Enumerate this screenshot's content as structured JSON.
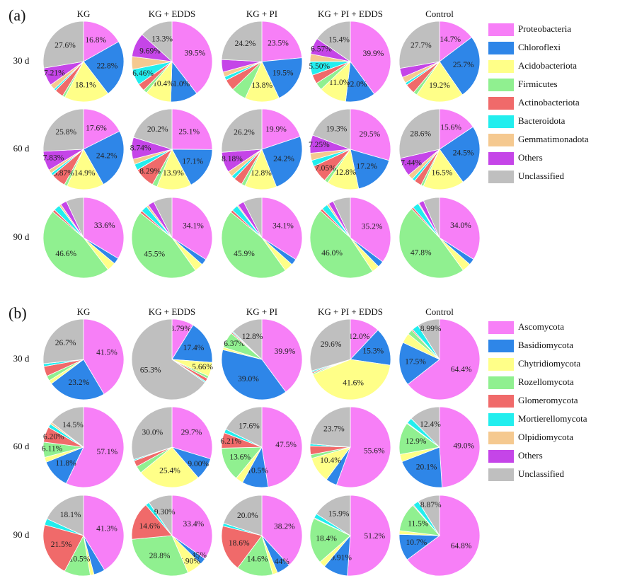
{
  "chart_data": [
    {
      "type": "pie",
      "panel": "(a)",
      "columns": [
        "KG",
        "KG + EDDS",
        "KG + PI",
        "KG + PI + EDDS",
        "Control"
      ],
      "rows": [
        "30 d",
        "60 d",
        "90 d"
      ],
      "categories": [
        "Proteobacteria",
        "Chloroflexi",
        "Acidobacteriota",
        "Firmicutes",
        "Actinobacteriota",
        "Bacteroidota",
        "Gemmatimonadota",
        "Others",
        "Unclassified"
      ],
      "colors": [
        "#f77ff7",
        "#2e86e8",
        "#ffff88",
        "#90f090",
        "#f06a6a",
        "#22eeee",
        "#f5c990",
        "#c545e8",
        "#bfbfbf"
      ],
      "pies": [
        [
          {
            "values": [
              16.8,
              22.8,
              18.1,
              1.0,
              3.5,
              0.8,
              2.19,
              7.21,
              27.6
            ],
            "value_labels": [
              "16.8%",
              "22.8%",
              "18.1%",
              null,
              null,
              null,
              null,
              "7.21%",
              "27.6%"
            ]
          },
          {
            "values": [
              39.5,
              11.0,
              10.4,
              1.5,
              3,
              6.46,
              5.15,
              9.69,
              13.3
            ],
            "value_labels": [
              "39.5%",
              "11.0%",
              "10.4%",
              null,
              null,
              "6.46%",
              null,
              "9.69%",
              "13.3%"
            ]
          },
          {
            "values": [
              23.5,
              19.5,
              13.8,
              6,
              4.5,
              1.5,
              2,
              5,
              24.2
            ],
            "value_labels": [
              "23.5%",
              "19.5%",
              "13.8%",
              null,
              null,
              null,
              null,
              null,
              "24.2%"
            ]
          },
          {
            "values": [
              39.9,
              12.0,
              11.0,
              3,
              3.63,
              5.5,
              3,
              6.57,
              15.4
            ],
            "value_labels": [
              "39.9%",
              "12.0%",
              "11.0%",
              null,
              null,
              "5.50%",
              null,
              "6.57%",
              "15.4%"
            ]
          },
          {
            "values": [
              14.7,
              25.7,
              19.2,
              1.5,
              4,
              1,
              2.5,
              3.7,
              27.7
            ],
            "value_labels": [
              "14.7%",
              "25.7%",
              "19.2%",
              null,
              null,
              null,
              null,
              null,
              "27.7%"
            ]
          }
        ],
        [
          {
            "values": [
              17.6,
              24.2,
              14.9,
              1.2,
              5.87,
              1.1,
              1.5,
              7.83,
              25.8
            ],
            "value_labels": [
              "17.6%",
              "24.2%",
              "14.9%",
              null,
              "5.87%",
              null,
              null,
              "7.83%",
              "25.8%"
            ]
          },
          {
            "values": [
              25.1,
              17.1,
              13.9,
              2,
              8.29,
              2.5,
              2.17,
              8.74,
              20.2
            ],
            "value_labels": [
              "25.1%",
              "17.1%",
              "13.9%",
              null,
              "8.29%",
              null,
              null,
              "8.74%",
              "20.2%"
            ]
          },
          {
            "values": [
              19.9,
              24.2,
              12.8,
              1.5,
              3.5,
              1.5,
              2.22,
              8.18,
              26.2
            ],
            "value_labels": [
              "19.9%",
              "24.2%",
              "12.8%",
              null,
              null,
              null,
              null,
              "8.18%",
              "26.2%"
            ]
          },
          {
            "values": [
              29.5,
              17.2,
              12.8,
              1.5,
              7.05,
              2.5,
              2.9,
              7.25,
              19.3
            ],
            "value_labels": [
              "29.5%",
              "17.2%",
              "12.8%",
              null,
              "7.05%",
              null,
              null,
              "7.25%",
              "19.3%"
            ]
          },
          {
            "values": [
              15.6,
              24.5,
              16.5,
              1,
              3,
              1.2,
              2.16,
              7.44,
              28.6
            ],
            "value_labels": [
              "15.6%",
              "24.5%",
              "16.5%",
              null,
              null,
              null,
              null,
              "7.44%",
              "28.6%"
            ]
          }
        ],
        [
          {
            "values": [
              33.6,
              2.5,
              3.5,
              46.6,
              1,
              2.5,
              0.8,
              2.5,
              7
            ],
            "value_labels": [
              "33.6%",
              null,
              null,
              "46.6%",
              null,
              null,
              null,
              null,
              null
            ]
          },
          {
            "values": [
              34.1,
              2.5,
              3.5,
              45.5,
              1,
              2.5,
              0.9,
              2.5,
              7.5
            ],
            "value_labels": [
              "34.1%",
              null,
              null,
              "45.5%",
              null,
              null,
              null,
              null,
              null
            ]
          },
          {
            "values": [
              34.1,
              2.5,
              3.5,
              45.9,
              1,
              2.5,
              0.5,
              2.5,
              7.5
            ],
            "value_labels": [
              "34.1%",
              null,
              null,
              "45.9%",
              null,
              null,
              null,
              null,
              null
            ]
          },
          {
            "values": [
              35.2,
              2.5,
              3,
              46.0,
              1,
              2.5,
              0.8,
              2,
              7
            ],
            "value_labels": [
              "35.2%",
              null,
              null,
              "46.0%",
              null,
              null,
              null,
              null,
              null
            ]
          },
          {
            "values": [
              34.0,
              2.5,
              3.5,
              47.8,
              0.8,
              2.5,
              0.4,
              2,
              6.5
            ],
            "value_labels": [
              "34.0%",
              null,
              null,
              "47.8%",
              null,
              null,
              null,
              null,
              null
            ]
          }
        ]
      ]
    },
    {
      "type": "pie",
      "panel": "(b)",
      "columns": [
        "KG",
        "KG + EDDS",
        "KG + PI",
        "KG + PI + EDDS",
        "Control"
      ],
      "rows": [
        "30 d",
        "60 d",
        "90 d"
      ],
      "categories": [
        "Ascomycota",
        "Basidiomycota",
        "Chytridiomycota",
        "Rozellomycota",
        "Glomeromycota",
        "Mortierellomycota",
        "Olpidiomycota",
        "Others",
        "Unclassified"
      ],
      "colors": [
        "#f77ff7",
        "#2e86e8",
        "#ffff88",
        "#90f090",
        "#f06a6a",
        "#22eeee",
        "#f5c990",
        "#c545e8",
        "#bfbfbf"
      ],
      "pies": [
        [
          {
            "values": [
              41.5,
              23.2,
              1.5,
              2,
              4,
              1.1,
              0,
              0,
              26.7
            ],
            "value_labels": [
              "41.5%",
              "23.2%",
              null,
              null,
              null,
              null,
              null,
              null,
              "26.7%"
            ]
          },
          {
            "values": [
              8.79,
              17.4,
              5.66,
              1,
              1.35,
              0.5,
              0,
              0,
              65.3
            ],
            "value_labels": [
              "8.79%",
              "17.4%",
              "5.66%",
              null,
              null,
              null,
              null,
              null,
              "65.3%"
            ]
          },
          {
            "values": [
              39.9,
              39.0,
              1,
              6.37,
              0.5,
              0.43,
              0,
              0,
              12.8
            ],
            "value_labels": [
              "39.9%",
              "39.0%",
              null,
              "6.37%",
              null,
              null,
              null,
              null,
              "12.8%"
            ]
          },
          {
            "values": [
              12.0,
              15.3,
              41.6,
              0.5,
              0.5,
              0.5,
              0,
              0,
              29.6
            ],
            "value_labels": [
              "12.0%",
              "15.3%",
              "41.6%",
              null,
              null,
              null,
              null,
              null,
              "29.6%"
            ]
          },
          {
            "values": [
              64.4,
              17.5,
              4,
              2,
              0.5,
              2.61,
              0,
              0,
              8.99
            ],
            "value_labels": [
              "64.4%",
              "17.5%",
              null,
              null,
              null,
              null,
              null,
              null,
              "8.99%"
            ]
          }
        ],
        [
          {
            "values": [
              57.1,
              11.8,
              2,
              6.11,
              6.2,
              1.5,
              0.79,
              0,
              14.5
            ],
            "value_labels": [
              "57.1%",
              "11.8%",
              null,
              "6.11%",
              "6.20%",
              null,
              null,
              null,
              "14.5%"
            ]
          },
          {
            "values": [
              29.7,
              9.0,
              25.4,
              2.9,
              2.5,
              0.5,
              0,
              0,
              30.0
            ],
            "value_labels": [
              "29.7%",
              "9.00%",
              "25.4%",
              null,
              null,
              null,
              null,
              null,
              "30.0%"
            ]
          },
          {
            "values": [
              47.5,
              10.5,
              3,
              13.6,
              6.21,
              1.59,
              0,
              0,
              17.6
            ],
            "value_labels": [
              "47.5%",
              "10.5%",
              null,
              "13.6%",
              "6.21%",
              null,
              null,
              null,
              "17.6%"
            ]
          },
          {
            "values": [
              55.6,
              4.5,
              10.4,
              1.5,
              3.5,
              0.8,
              0,
              0,
              23.7
            ],
            "value_labels": [
              "55.6%",
              null,
              "10.4%",
              null,
              null,
              null,
              null,
              null,
              "23.7%"
            ]
          },
          {
            "values": [
              49.0,
              20.1,
              3,
              12.9,
              0.3,
              2.3,
              0,
              0,
              12.4
            ],
            "value_labels": [
              "49.0%",
              "20.1%",
              null,
              "12.9%",
              null,
              null,
              null,
              null,
              "12.4%"
            ]
          }
        ],
        [
          {
            "values": [
              41.3,
              4.5,
              1.5,
              10.5,
              21.5,
              2.6,
              0,
              0,
              18.1
            ],
            "value_labels": [
              "41.3%",
              null,
              null,
              "10.5%",
              "21.5%",
              null,
              null,
              null,
              "18.1%"
            ]
          },
          {
            "values": [
              33.4,
              2.45,
              5.9,
              28.8,
              14.6,
              1.5,
              0,
              0,
              9.3
            ],
            "value_labels": [
              "33.4%",
              "2.45%",
              "5.90%",
              "28.8%",
              "14.6%",
              null,
              null,
              null,
              "9.30%"
            ]
          },
          {
            "values": [
              38.2,
              5.44,
              2,
              14.6,
              18.6,
              1.16,
              0,
              0,
              20.0
            ],
            "value_labels": [
              "38.2%",
              "5.44%",
              null,
              "14.6%",
              "18.6%",
              null,
              null,
              null,
              "20.0%"
            ]
          },
          {
            "values": [
              51.2,
              9.91,
              2.5,
              18.4,
              0.3,
              1.79,
              0,
              0,
              15.9
            ],
            "value_labels": [
              "51.2%",
              "9.91%",
              null,
              "18.4%",
              null,
              null,
              null,
              null,
              "15.9%"
            ]
          },
          {
            "values": [
              64.8,
              10.7,
              1.5,
              11.5,
              0.33,
              2.3,
              0,
              0,
              8.87
            ],
            "value_labels": [
              "64.8%",
              "10.7%",
              null,
              "11.5%",
              null,
              null,
              null,
              null,
              "8.87%"
            ]
          }
        ]
      ]
    }
  ]
}
